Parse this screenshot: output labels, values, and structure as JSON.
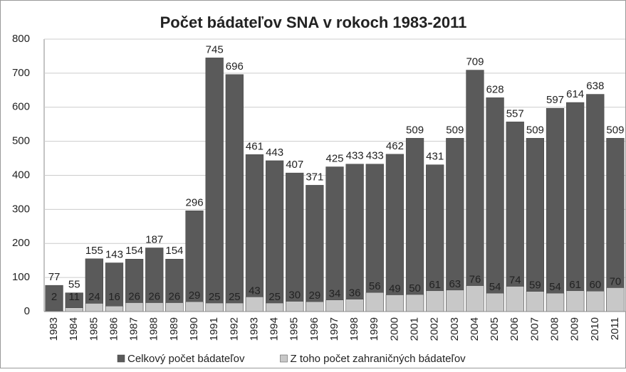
{
  "chart_data": {
    "type": "bar",
    "title": "Počet bádateľov SNA v rokoch 1983-2011",
    "categories": [
      "1983",
      "1984",
      "1985",
      "1986",
      "1987",
      "1988",
      "1989",
      "1990",
      "1991",
      "1992",
      "1993",
      "1994",
      "1995",
      "1996",
      "1997",
      "1998",
      "1999",
      "2000",
      "2001",
      "2002",
      "2003",
      "2004",
      "2005",
      "2006",
      "2007",
      "2008",
      "2009",
      "2010",
      "2011"
    ],
    "series": [
      {
        "name": "Celkový počet bádateľov",
        "color": "#5a5a5a",
        "values": [
          77,
          55,
          155,
          143,
          154,
          187,
          154,
          296,
          745,
          696,
          461,
          443,
          407,
          371,
          425,
          433,
          433,
          462,
          509,
          431,
          509,
          709,
          628,
          557,
          509,
          597,
          614,
          638,
          509
        ]
      },
      {
        "name": "Z toho počet zahraničných bádateľov",
        "color": "#c8c8c8",
        "values": [
          2,
          11,
          24,
          16,
          26,
          26,
          26,
          29,
          25,
          25,
          43,
          25,
          30,
          29,
          34,
          36,
          56,
          49,
          50,
          61,
          63,
          76,
          54,
          74,
          59,
          54,
          61,
          60,
          70
        ]
      }
    ],
    "ylim": [
      0,
      800
    ],
    "yticks": [
      0,
      100,
      200,
      300,
      400,
      500,
      600,
      700,
      800
    ],
    "grid": true,
    "legend": "bottom"
  }
}
